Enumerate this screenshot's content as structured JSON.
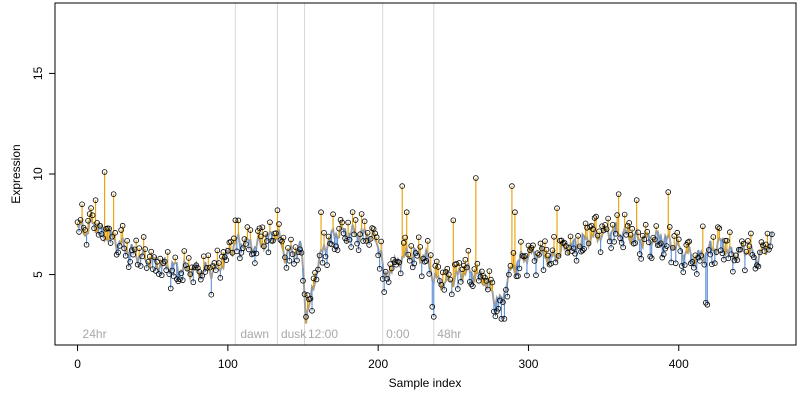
{
  "chart_data": {
    "type": "scatter",
    "title": "",
    "xlabel": "Sample index",
    "ylabel": "Expression",
    "xlim": [
      -15,
      478
    ],
    "ylim": [
      1.5,
      18.5
    ],
    "x_ticks": [
      0,
      100,
      200,
      300,
      400
    ],
    "y_ticks": [
      5,
      10,
      15
    ],
    "x_tick_labels": [
      "0",
      "100",
      "200",
      "300",
      "400"
    ],
    "y_tick_labels": [
      "5",
      "10",
      "15"
    ],
    "grid": false,
    "legend": "none",
    "segment_markers": [
      {
        "x": 105,
        "label": ""
      },
      {
        "x": 133,
        "label": ""
      },
      {
        "x": 151,
        "label": ""
      },
      {
        "x": 203,
        "label": ""
      },
      {
        "x": 237,
        "label": ""
      }
    ],
    "segment_labels": [
      {
        "x": 2,
        "text": "24hr"
      },
      {
        "x": 107,
        "text": "dawn"
      },
      {
        "x": 134,
        "text": "dusk"
      },
      {
        "x": 152,
        "text": "12:00"
      },
      {
        "x": 204,
        "text": "0:00"
      },
      {
        "x": 238,
        "text": "48hr"
      }
    ],
    "colors": {
      "above": "#E69F00",
      "below": "#5B8FD9",
      "trend": "#A0A0A0",
      "marker_label": "#A8A8A8",
      "divider": "#D8D8D8"
    },
    "anchors": [
      [
        0,
        7.2
      ],
      [
        3,
        7.4
      ],
      [
        6,
        7.1
      ],
      [
        10,
        7.6
      ],
      [
        14,
        7.3
      ],
      [
        18,
        7.0
      ],
      [
        22,
        6.8
      ],
      [
        27,
        6.6
      ],
      [
        32,
        6.3
      ],
      [
        37,
        6.1
      ],
      [
        42,
        5.9
      ],
      [
        48,
        5.7
      ],
      [
        55,
        5.5
      ],
      [
        62,
        5.4
      ],
      [
        70,
        5.3
      ],
      [
        78,
        5.2
      ],
      [
        86,
        5.2
      ],
      [
        94,
        5.3
      ],
      [
        100,
        6.0
      ],
      [
        105,
        6.6
      ],
      [
        112,
        6.6
      ],
      [
        118,
        6.4
      ],
      [
        124,
        6.6
      ],
      [
        130,
        7.0
      ],
      [
        134,
        6.8
      ],
      [
        138,
        6.0
      ],
      [
        143,
        6.1
      ],
      [
        149,
        6.3
      ],
      [
        152,
        3.0
      ],
      [
        155,
        3.6
      ],
      [
        160,
        5.6
      ],
      [
        166,
        6.6
      ],
      [
        172,
        7.1
      ],
      [
        180,
        7.1
      ],
      [
        188,
        7.0
      ],
      [
        196,
        6.9
      ],
      [
        202,
        6.2
      ],
      [
        204,
        4.6
      ],
      [
        208,
        5.3
      ],
      [
        214,
        5.7
      ],
      [
        220,
        6.0
      ],
      [
        227,
        6.0
      ],
      [
        233,
        5.8
      ],
      [
        237,
        4.8
      ],
      [
        243,
        4.6
      ],
      [
        250,
        4.8
      ],
      [
        258,
        5.2
      ],
      [
        265,
        5.0
      ],
      [
        272,
        4.6
      ],
      [
        278,
        3.8
      ],
      [
        282,
        3.6
      ],
      [
        286,
        4.8
      ],
      [
        292,
        5.6
      ],
      [
        300,
        6.0
      ],
      [
        308,
        6.0
      ],
      [
        316,
        5.8
      ],
      [
        324,
        6.3
      ],
      [
        332,
        6.5
      ],
      [
        340,
        6.8
      ],
      [
        348,
        7.0
      ],
      [
        356,
        7.2
      ],
      [
        364,
        7.0
      ],
      [
        372,
        6.8
      ],
      [
        380,
        6.7
      ],
      [
        388,
        6.9
      ],
      [
        396,
        6.5
      ],
      [
        404,
        6.1
      ],
      [
        412,
        5.8
      ],
      [
        420,
        6.2
      ],
      [
        428,
        6.6
      ],
      [
        436,
        5.9
      ],
      [
        444,
        6.3
      ],
      [
        452,
        5.8
      ],
      [
        458,
        6.3
      ],
      [
        462,
        6.7
      ]
    ],
    "noise_amplitude": 0.9,
    "spikes": [
      [
        12,
        8.7
      ],
      [
        18,
        10.1
      ],
      [
        24,
        9.0
      ],
      [
        105,
        7.7
      ],
      [
        128,
        7.6
      ],
      [
        133,
        8.2
      ],
      [
        162,
        8.1
      ],
      [
        170,
        8.0
      ],
      [
        216,
        9.4
      ],
      [
        219,
        8.1
      ],
      [
        250,
        7.7
      ],
      [
        265,
        9.8
      ],
      [
        289,
        9.4
      ],
      [
        291,
        8.1
      ],
      [
        319,
        8.3
      ],
      [
        360,
        9.0
      ],
      [
        372,
        8.7
      ],
      [
        393,
        9.1
      ],
      [
        416,
        7.4
      ]
    ],
    "dips": [
      [
        152,
        2.9
      ],
      [
        156,
        3.2
      ],
      [
        236,
        3.4
      ],
      [
        237,
        2.9
      ],
      [
        282,
        2.8
      ],
      [
        284,
        2.8
      ],
      [
        418,
        3.6
      ],
      [
        419,
        3.5
      ]
    ]
  }
}
